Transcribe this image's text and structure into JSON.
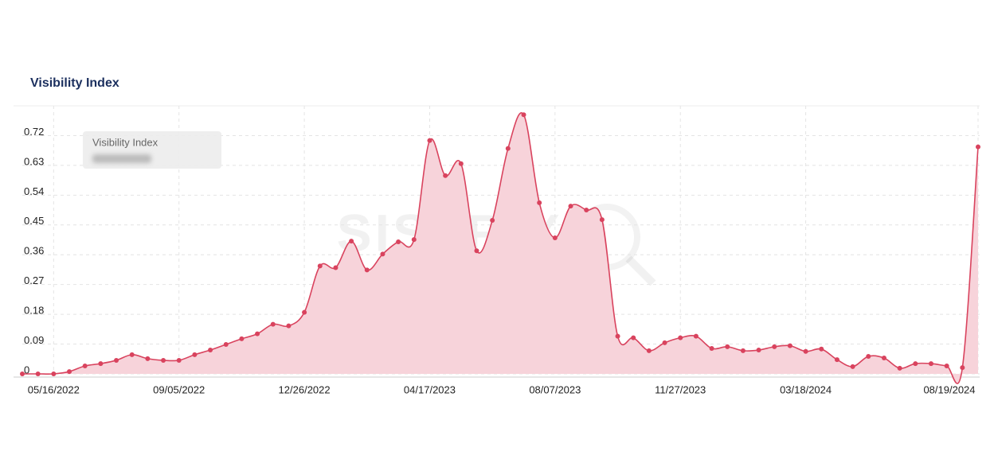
{
  "chart_data": {
    "type": "area",
    "title": "Visibility Index",
    "watermark": "SISTRIX",
    "tooltip_label": "Visibility Index",
    "x": [
      "04/18/2022",
      "05/02/2022",
      "05/16/2022",
      "05/30/2022",
      "06/13/2022",
      "06/27/2022",
      "07/11/2022",
      "07/25/2022",
      "08/08/2022",
      "08/22/2022",
      "09/05/2022",
      "09/19/2022",
      "10/03/2022",
      "10/17/2022",
      "10/31/2022",
      "11/14/2022",
      "11/28/2022",
      "12/12/2022",
      "12/26/2022",
      "01/09/2023",
      "01/23/2023",
      "02/06/2023",
      "02/20/2023",
      "03/06/2023",
      "03/20/2023",
      "04/03/2023",
      "04/17/2023",
      "05/01/2023",
      "05/15/2023",
      "05/29/2023",
      "06/12/2023",
      "06/26/2023",
      "07/10/2023",
      "07/24/2023",
      "08/07/2023",
      "08/21/2023",
      "09/04/2023",
      "09/18/2023",
      "10/02/2023",
      "10/16/2023",
      "10/30/2023",
      "11/13/2023",
      "11/27/2023",
      "12/11/2023",
      "12/25/2023",
      "01/08/2024",
      "01/22/2024",
      "02/05/2024",
      "02/19/2024",
      "03/04/2024",
      "03/18/2024",
      "04/01/2024",
      "04/15/2024",
      "04/29/2024",
      "05/13/2024",
      "05/27/2024",
      "06/10/2024",
      "06/24/2024",
      "07/08/2024",
      "07/22/2024",
      "08/05/2024",
      "08/19/2024"
    ],
    "series": [
      {
        "name": "Visibility Index",
        "color": "#d9435e",
        "fill": "#f7d3da",
        "values": [
          0,
          0,
          0,
          0.007,
          0.024,
          0.031,
          0.041,
          0.058,
          0.046,
          0.041,
          0.041,
          0.058,
          0.072,
          0.089,
          0.106,
          0.121,
          0.15,
          0.145,
          0.186,
          0.326,
          0.321,
          0.401,
          0.314,
          0.362,
          0.399,
          0.406,
          0.705,
          0.599,
          0.635,
          0.372,
          0.464,
          0.681,
          0.783,
          0.517,
          0.411,
          0.507,
          0.495,
          0.466,
          0.114,
          0.109,
          0.07,
          0.094,
          0.109,
          0.114,
          0.077,
          0.082,
          0.07,
          0.072,
          0.082,
          0.085,
          0.068,
          0.075,
          0.043,
          0.022,
          0.053,
          0.048,
          0.017,
          0.031,
          0.031,
          0.024,
          0.019,
          0.686
        ]
      }
    ],
    "xlim": [
      "04/18/2022",
      "08/19/2024"
    ],
    "xticks": [
      "05/16/2022",
      "09/05/2022",
      "12/26/2022",
      "04/17/2023",
      "08/07/2023",
      "11/27/2023",
      "03/18/2024",
      "08/19/2024"
    ],
    "ylim": [
      0,
      0.81
    ],
    "yticks": [
      0,
      0.09,
      0.18,
      0.27,
      0.36,
      0.45,
      0.54,
      0.63,
      0.72
    ],
    "grid": true
  }
}
